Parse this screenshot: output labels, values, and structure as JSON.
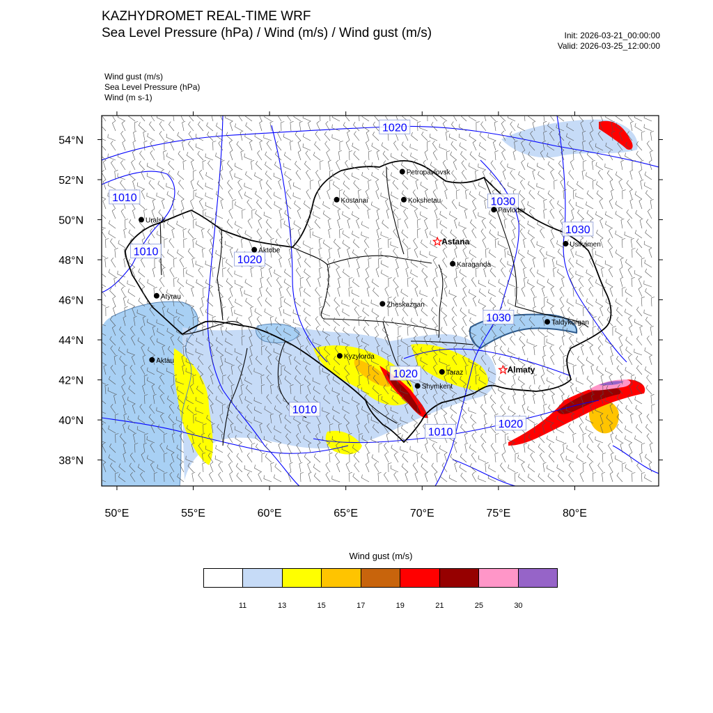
{
  "header": {
    "title_line1": "KAZHYDROMET REAL-TIME WRF",
    "title_line2": "Sea Level Pressure  (hPa) / Wind  (m/s) / Wind gust  (m/s)",
    "init": "Init: 2026-03-21_00:00:00",
    "valid": "Valid: 2026-03-25_12:00:00"
  },
  "fields_legend": [
    "Wind gust   (m/s)",
    "Sea Level Pressure   (hPa)",
    "Wind   (m s-1)"
  ],
  "axes": {
    "lon_labels": [
      "50°E",
      "55°E",
      "60°E",
      "65°E",
      "70°E",
      "75°E",
      "80°E"
    ],
    "lon_values": [
      50,
      55,
      60,
      65,
      70,
      75,
      80
    ],
    "lat_labels": [
      "54°N",
      "52°N",
      "50°N",
      "48°N",
      "46°N",
      "44°N",
      "42°N",
      "40°N",
      "38°N"
    ],
    "lat_values": [
      54,
      52,
      50,
      48,
      46,
      44,
      42,
      40,
      38
    ],
    "lon_range": [
      49.0,
      85.5
    ],
    "lat_range": [
      36.7,
      55.2
    ]
  },
  "cities": [
    {
      "name": "Petropavlovsk",
      "lon": 68.7,
      "lat": 52.4,
      "capital": false
    },
    {
      "name": "Kostanai",
      "lon": 64.4,
      "lat": 51.0,
      "capital": false
    },
    {
      "name": "Kokshetau",
      "lon": 68.8,
      "lat": 51.0,
      "capital": false
    },
    {
      "name": "Pavlodar",
      "lon": 74.7,
      "lat": 50.5,
      "capital": false
    },
    {
      "name": "Uralsk",
      "lon": 51.6,
      "lat": 50.0,
      "capital": false
    },
    {
      "name": "Astana",
      "lon": 71.0,
      "lat": 48.9,
      "capital": true
    },
    {
      "name": "Usikamen",
      "lon": 79.4,
      "lat": 48.8,
      "capital": false
    },
    {
      "name": "Aktobe",
      "lon": 59.0,
      "lat": 48.5,
      "capital": false
    },
    {
      "name": "Karaganda",
      "lon": 72.0,
      "lat": 47.8,
      "capital": false
    },
    {
      "name": "Atyrau",
      "lon": 52.6,
      "lat": 46.2,
      "capital": false
    },
    {
      "name": "Zheskazgan",
      "lon": 67.4,
      "lat": 45.8,
      "capital": false
    },
    {
      "name": "Taldykorgan",
      "lon": 78.2,
      "lat": 44.9,
      "capital": false
    },
    {
      "name": "Kyzylorda",
      "lon": 64.6,
      "lat": 43.2,
      "capital": false
    },
    {
      "name": "Aktau",
      "lon": 52.3,
      "lat": 43.0,
      "capital": false
    },
    {
      "name": "Almaty",
      "lon": 75.3,
      "lat": 42.5,
      "capital": true
    },
    {
      "name": "Taraz",
      "lon": 71.3,
      "lat": 42.4,
      "capital": false
    },
    {
      "name": "Shymkent",
      "lon": 69.7,
      "lat": 41.7,
      "capital": false
    }
  ],
  "isobar_labels": [
    {
      "text": "1020",
      "lon": 68.2,
      "lat": 54.6
    },
    {
      "text": "1010",
      "lon": 50.5,
      "lat": 51.1
    },
    {
      "text": "1030",
      "lon": 75.3,
      "lat": 50.9
    },
    {
      "text": "1030",
      "lon": 80.2,
      "lat": 49.5
    },
    {
      "text": "1010",
      "lon": 51.9,
      "lat": 48.4
    },
    {
      "text": "1020",
      "lon": 58.7,
      "lat": 48.0
    },
    {
      "text": "1030",
      "lon": 75.0,
      "lat": 45.1
    },
    {
      "text": "1020",
      "lon": 68.9,
      "lat": 42.3
    },
    {
      "text": "1010",
      "lon": 62.3,
      "lat": 40.5
    },
    {
      "text": "1010",
      "lon": 71.2,
      "lat": 39.4
    },
    {
      "text": "1020",
      "lon": 75.8,
      "lat": 39.8
    }
  ],
  "colorbar": {
    "title": "Wind gust (m/s)",
    "colors": [
      "#ffffff",
      "#c6dbf7",
      "#ffff00",
      "#ffc400",
      "#c8640c",
      "#ff0000",
      "#960000",
      "#ff96c8",
      "#9664c8"
    ],
    "ticks": [
      "11",
      "13",
      "15",
      "17",
      "19",
      "21",
      "25",
      "30"
    ]
  },
  "style": {
    "isobar_color": "#0000ff",
    "border_color": "#000000",
    "barb_color": "#505050",
    "caspian_color": "#a8d0f4"
  }
}
